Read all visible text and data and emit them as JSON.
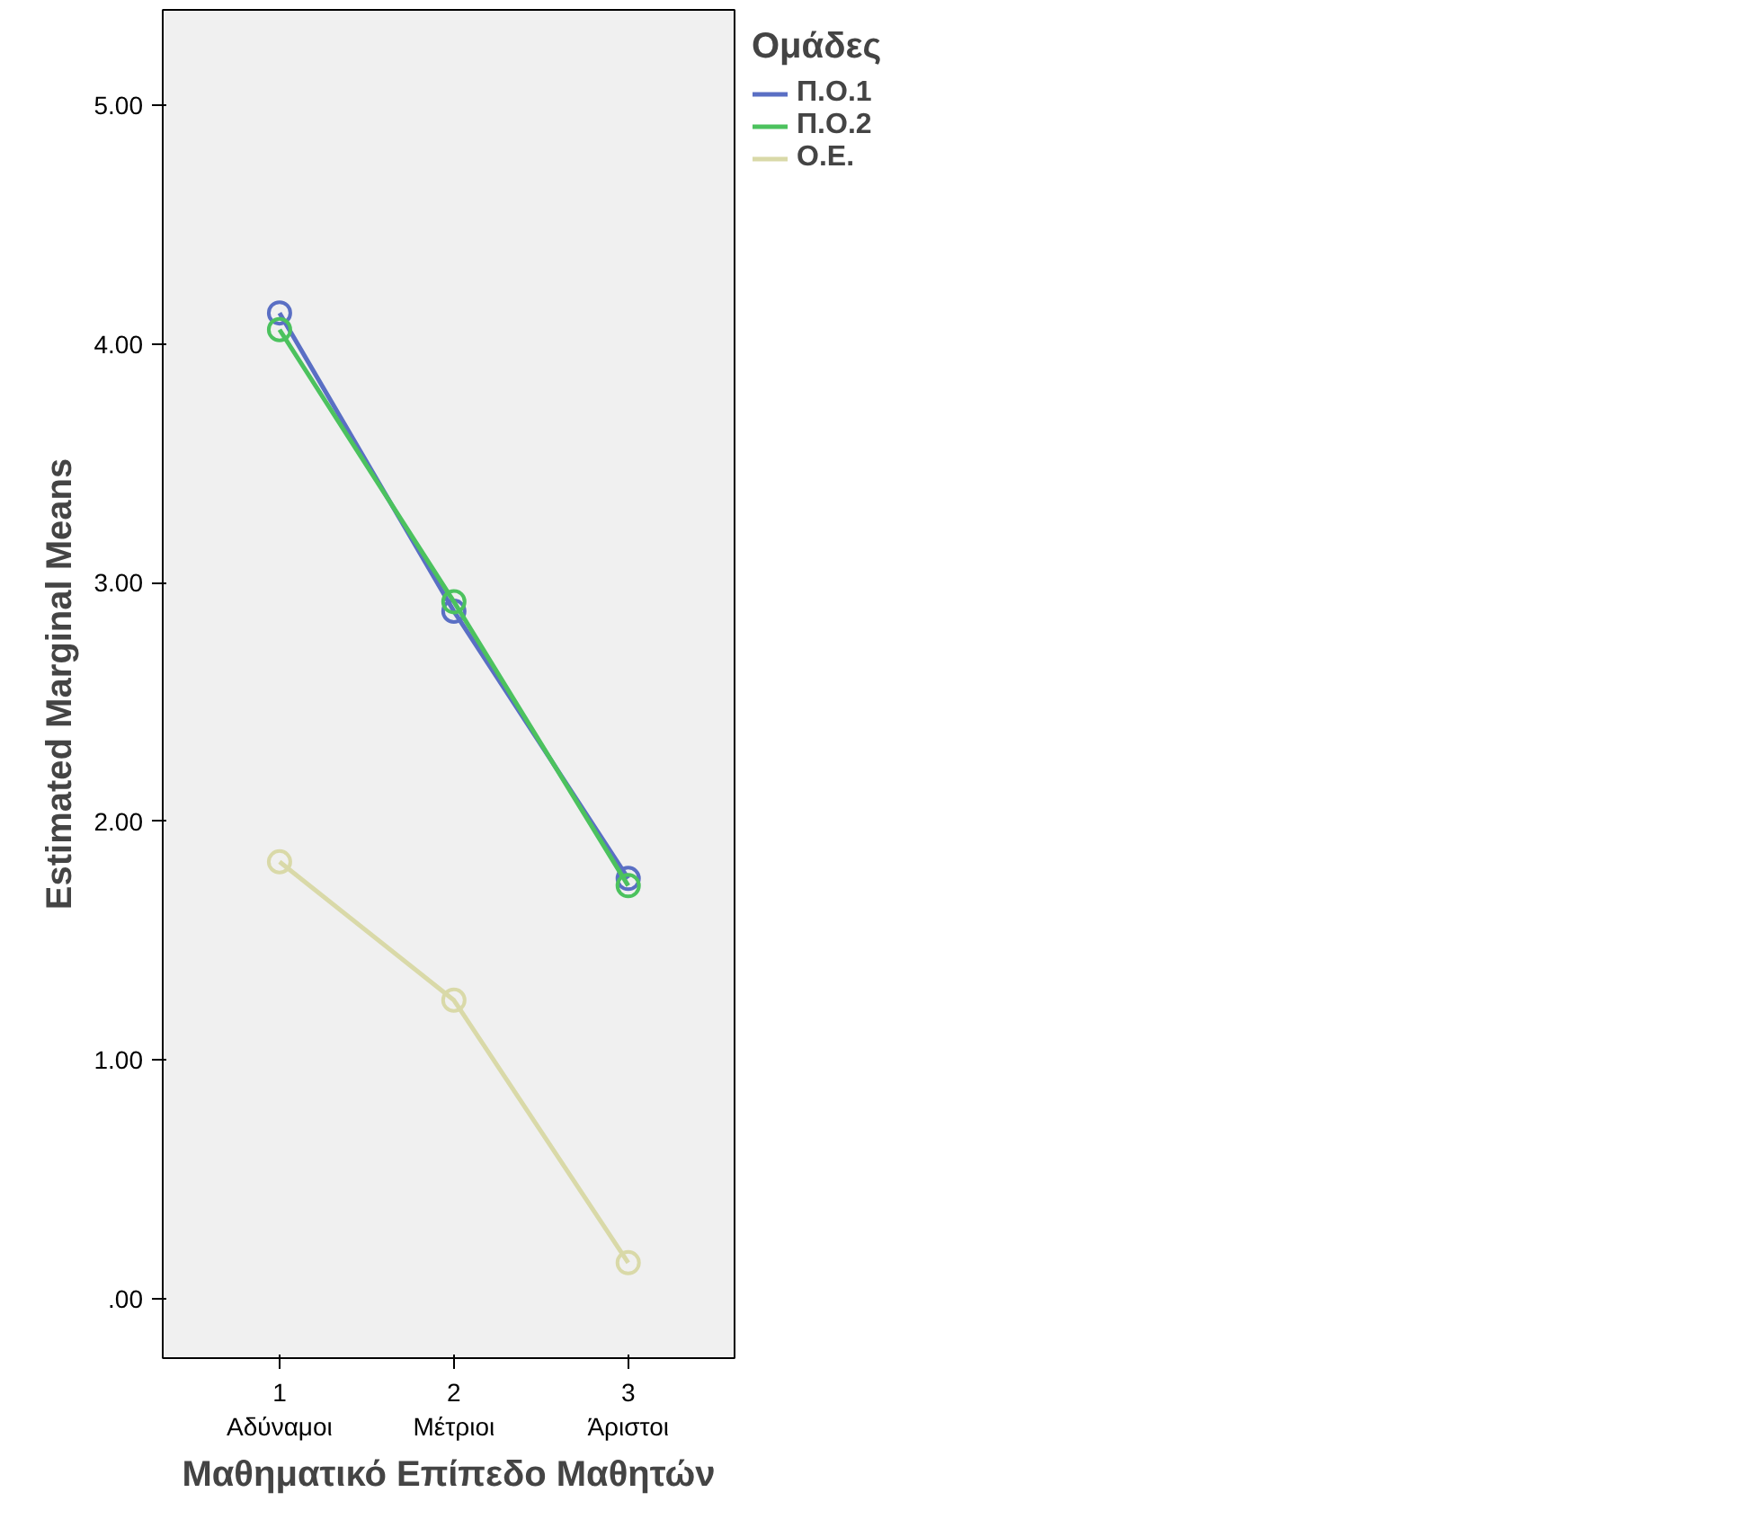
{
  "chart_data": {
    "type": "line",
    "xlabel": "Μαθηματικό Επίπεδο Μαθητών",
    "ylabel": "Estimated Marginal Means",
    "legend_title": "Ομάδες",
    "categories": [
      "1\nΑδύναμοι",
      "2\nΜέτριοι",
      "3\nΆριστοι"
    ],
    "series": [
      {
        "name": "Π.Ο.1",
        "color": "#5a6fc4",
        "values": [
          4.13,
          2.88,
          1.76
        ]
      },
      {
        "name": "Π.Ο.2",
        "color": "#4cc25e",
        "values": [
          4.06,
          2.92,
          1.73
        ]
      },
      {
        "name": "Ο.Ε.",
        "color": "#d9d9a8",
        "values": [
          1.83,
          1.25,
          0.15
        ]
      }
    ],
    "ylim": [
      -0.25,
      5.4
    ],
    "yticks": [
      {
        "value": 0,
        "label": ".00"
      },
      {
        "value": 1,
        "label": "1.00"
      },
      {
        "value": 2,
        "label": "2.00"
      },
      {
        "value": 3,
        "label": "3.00"
      },
      {
        "value": 4,
        "label": "4.00"
      },
      {
        "value": 5,
        "label": "5.00"
      }
    ],
    "marker": "circle",
    "line_style": "solid",
    "grid": false,
    "legend": "top right"
  }
}
